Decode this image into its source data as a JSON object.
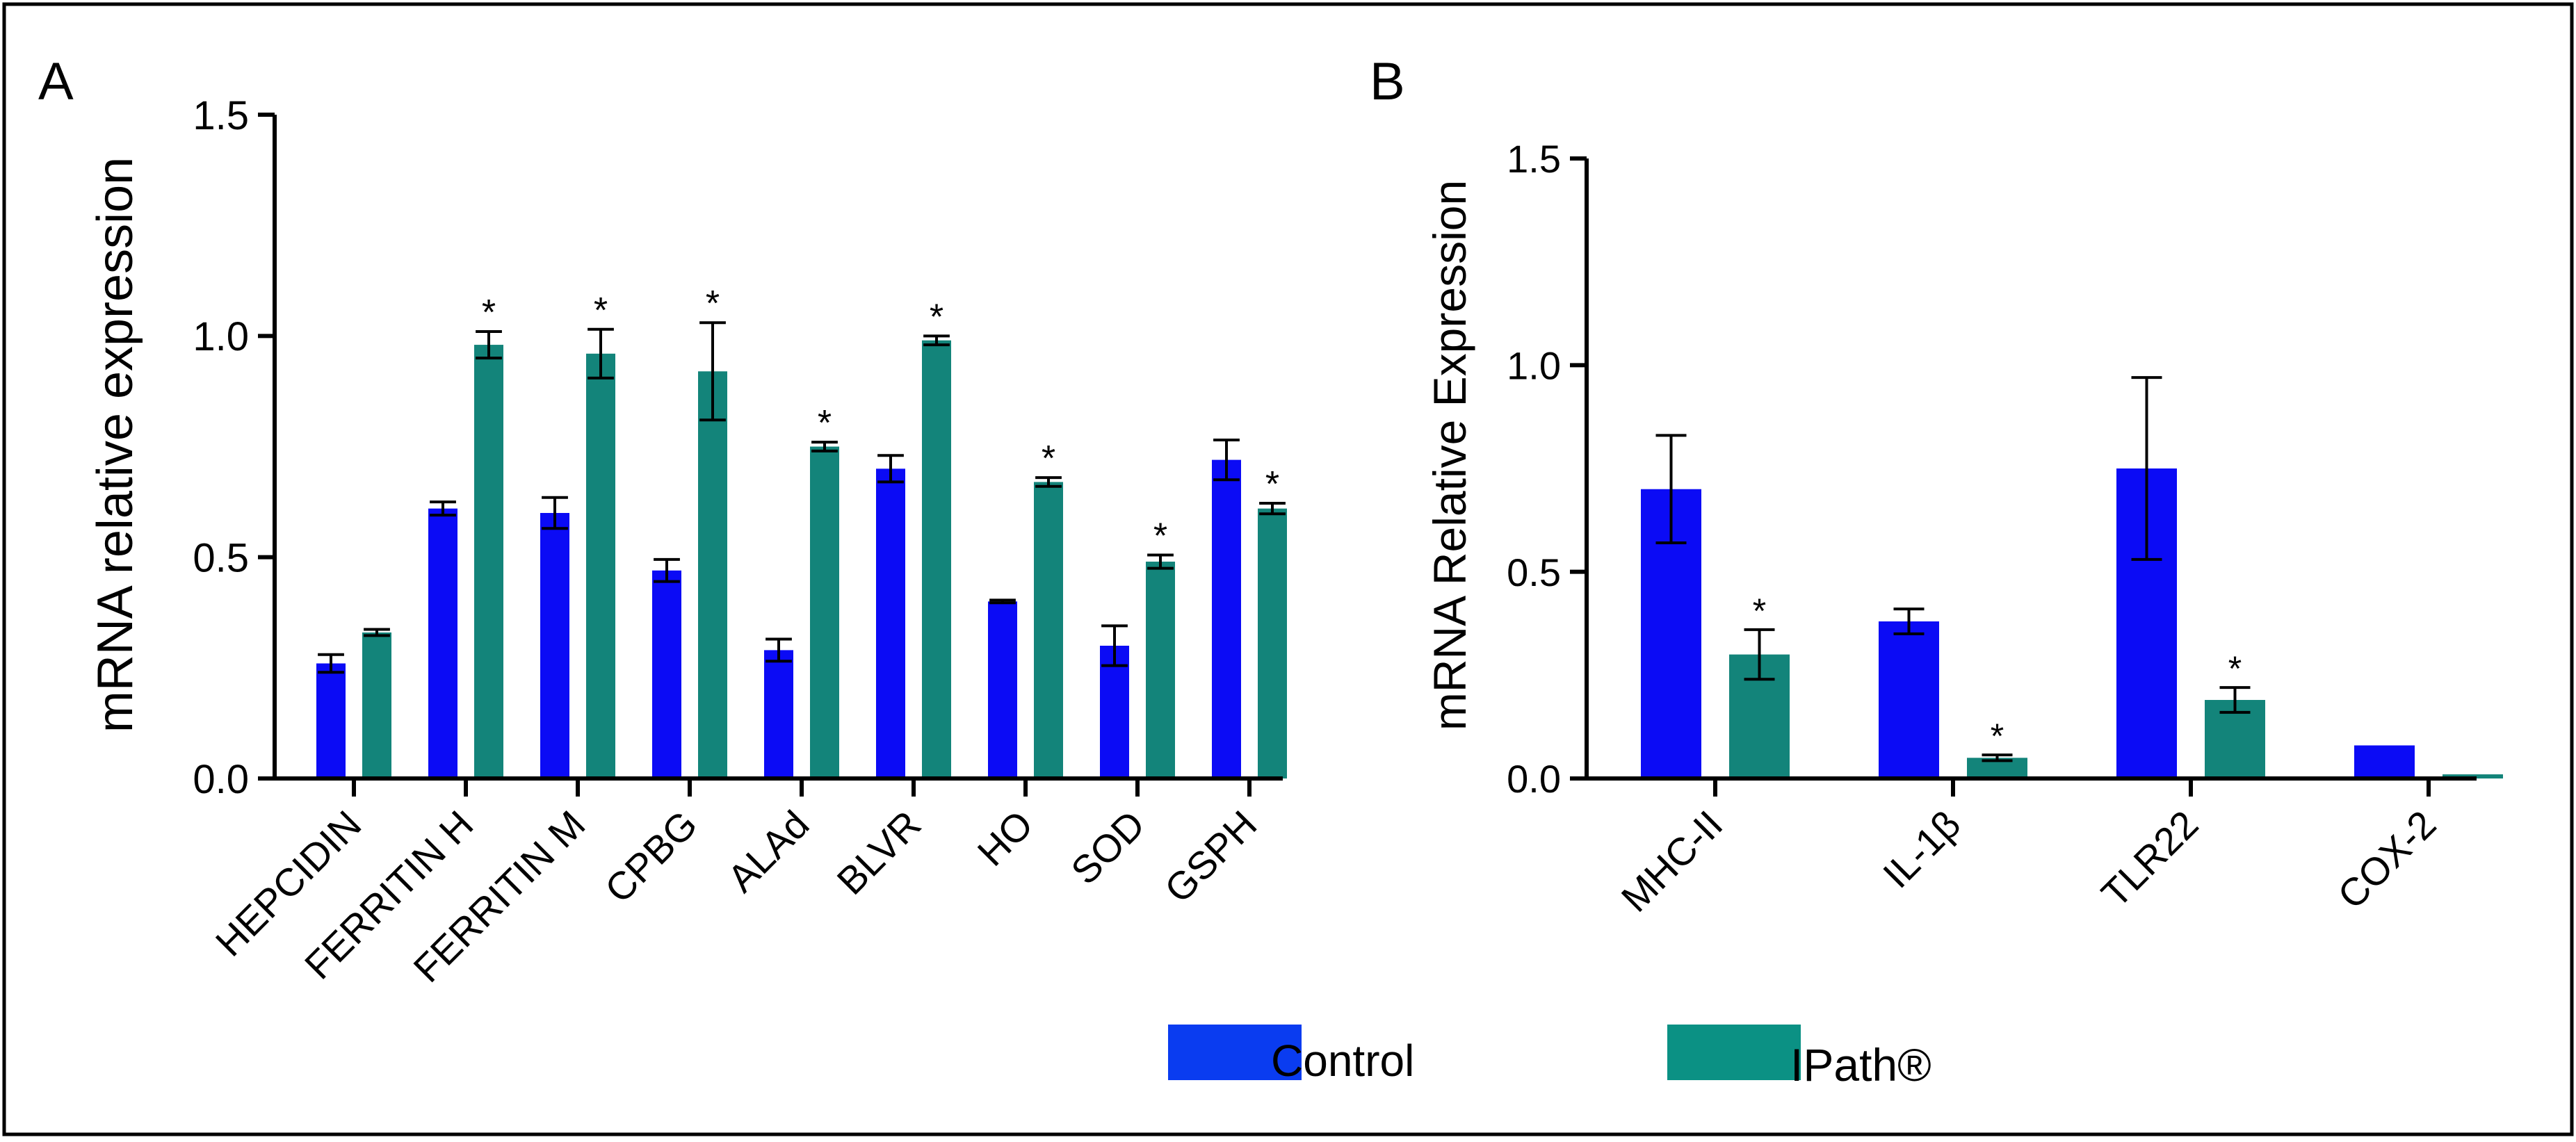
{
  "colors": {
    "control": "#0b0bf5",
    "treatment": "#13847a",
    "legend_control": "#0a3cf0",
    "legend_treatment": "#0b9184",
    "axis": "#000000"
  },
  "legend": [
    {
      "key": "control",
      "label": "Control"
    },
    {
      "key": "treatment",
      "label": "IPath®"
    }
  ],
  "chart_data": [
    {
      "type": "bar",
      "panel_label": "A",
      "ylabel": "mRNA relative expression",
      "ylim": [
        0,
        1.5
      ],
      "yticks": [
        "0.0",
        "0.5",
        "1.0",
        "1.5"
      ],
      "categories": [
        "HEPCIDIN",
        "FERRITIN H",
        "FERRITIN M",
        "CPBG",
        "ALAd",
        "BLVR",
        "HO",
        "SOD",
        "GSPH"
      ],
      "series": [
        {
          "name": "Control",
          "key": "control",
          "values": [
            0.26,
            0.61,
            0.6,
            0.47,
            0.29,
            0.7,
            0.4,
            0.3,
            0.72
          ],
          "errors": [
            0.02,
            0.015,
            0.035,
            0.025,
            0.025,
            0.03,
            0.003,
            0.045,
            0.045
          ]
        },
        {
          "name": "IPath®",
          "key": "treatment",
          "values": [
            0.33,
            0.98,
            0.96,
            0.92,
            0.75,
            0.99,
            0.67,
            0.49,
            0.61
          ],
          "errors": [
            0.007,
            0.03,
            0.055,
            0.11,
            0.01,
            0.01,
            0.01,
            0.015,
            0.012
          ]
        }
      ],
      "significance": [
        "",
        "*",
        "*",
        "*",
        "*",
        "*",
        "*",
        "*",
        "*"
      ]
    },
    {
      "type": "bar",
      "panel_label": "B",
      "ylabel": "mRNA Relative Expression",
      "ylim": [
        0,
        1.5
      ],
      "yticks": [
        "0.0",
        "0.5",
        "1.0",
        "1.5"
      ],
      "categories": [
        "MHC-II",
        "IL-1β",
        "TLR22",
        "COX-2"
      ],
      "series": [
        {
          "name": "Control",
          "key": "control",
          "values": [
            0.7,
            0.38,
            0.75,
            0.08
          ],
          "errors": [
            0.13,
            0.03,
            0.22,
            0.0
          ]
        },
        {
          "name": "IPath®",
          "key": "treatment",
          "values": [
            0.3,
            0.05,
            0.19,
            0.01
          ],
          "errors": [
            0.06,
            0.007,
            0.03,
            0.0
          ]
        }
      ],
      "significance": [
        "*",
        "*",
        "*",
        ""
      ]
    }
  ]
}
